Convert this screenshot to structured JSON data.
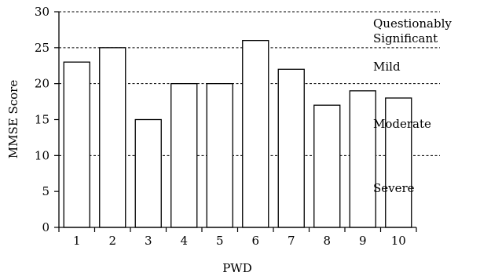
{
  "chart_data": {
    "type": "bar",
    "categories": [
      "1",
      "2",
      "3",
      "4",
      "5",
      "6",
      "7",
      "8",
      "9",
      "10"
    ],
    "values": [
      23,
      25,
      15,
      20,
      20,
      26,
      22,
      17,
      19,
      18
    ],
    "xlabel": "PWD",
    "ylabel": "MMSE Score",
    "ylim": [
      0,
      30
    ],
    "yticks": [
      0,
      5,
      10,
      15,
      20,
      25,
      30
    ],
    "grid": false,
    "thresholds": [
      10,
      20,
      25,
      30
    ],
    "regions": [
      {
        "lines": [
          "Questionably",
          "Significant"
        ]
      },
      {
        "lines": [
          "Mild"
        ]
      },
      {
        "lines": [
          "Moderate"
        ]
      },
      {
        "lines": [
          "Severe"
        ]
      }
    ]
  }
}
